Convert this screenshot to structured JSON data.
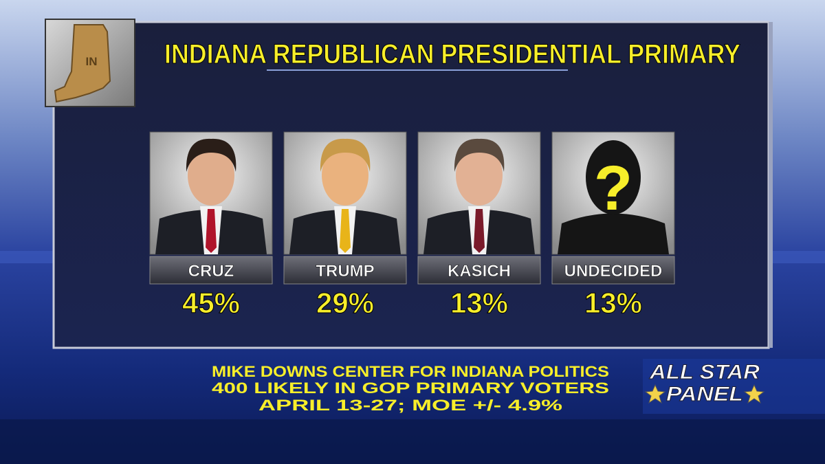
{
  "header": {
    "title": "INDIANA REPUBLICAN PRESIDENTIAL PRIMARY",
    "state_label": "IN"
  },
  "candidates": [
    {
      "name": "CRUZ",
      "result": "45%"
    },
    {
      "name": "TRUMP",
      "result": "29%"
    },
    {
      "name": "KASICH",
      "result": "13%"
    },
    {
      "name": "UNDECIDED",
      "result": "13%",
      "photo_mark": "?"
    }
  ],
  "footer": {
    "source_lines": [
      "MIKE DOWNS CENTER FOR INDIANA POLITICS",
      "400 LIKELY IN GOP PRIMARY VOTERS",
      "APRIL 13-27; MOE +/- 4.9%"
    ],
    "logo": [
      "ALL STAR",
      "PANEL"
    ]
  }
}
